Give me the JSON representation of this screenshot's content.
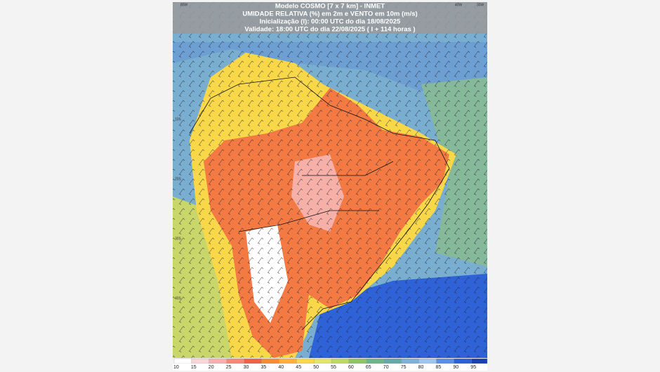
{
  "header": {
    "lines": [
      "Modelo COSMO [7 x 7 km] - INMET",
      "UMIDADE RELATIVA (%) em 2m e VENTO em 10m (m/s)",
      "Inicialização (I): 00:00 UTC do dia 18/08/2025",
      "Validade: 18:00 UTC do dia 22/08/2025 ( I + 114 horas )"
    ]
  },
  "lon_labels": [
    "80W",
    "40W",
    "30W"
  ],
  "lat_labels": [
    "10S",
    "20S",
    "30S",
    "40S"
  ],
  "colorbar": {
    "labels": [
      10,
      15,
      20,
      25,
      30,
      35,
      40,
      45,
      50,
      55,
      60,
      65,
      70,
      75,
      80,
      85,
      90,
      95
    ],
    "colors": [
      "#ffffff",
      "#f9d6d6",
      "#f5b0b0",
      "#f28a7a",
      "#f0604a",
      "#f78b3a",
      "#fbb03a",
      "#f8d848",
      "#e4e36a",
      "#bcd86a",
      "#8fc46a",
      "#6db58a",
      "#66a8a8",
      "#7fb0d8",
      "#a0c4ec",
      "#5b8fe0",
      "#2a5fd8",
      "#1a3fb0"
    ]
  }
}
